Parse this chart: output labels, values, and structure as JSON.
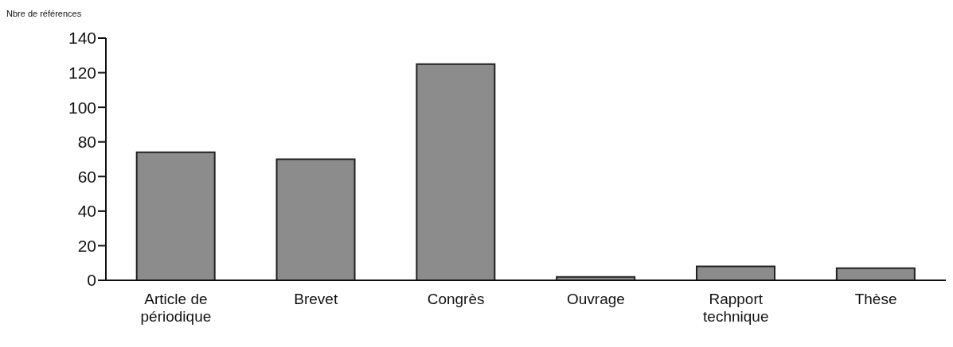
{
  "chart_data": {
    "type": "bar",
    "ylabel": "Nbre de références",
    "categories": [
      "Article de périodique",
      "Brevet",
      "Congrès",
      "Ouvrage",
      "Rapport technique",
      "Thèse"
    ],
    "values": [
      74,
      70,
      125,
      2,
      8,
      7
    ],
    "color": "#8c8c8c",
    "ylim": [
      0,
      140
    ],
    "yticks": [
      0,
      20,
      40,
      60,
      80,
      100,
      120,
      140
    ],
    "grid": false
  }
}
